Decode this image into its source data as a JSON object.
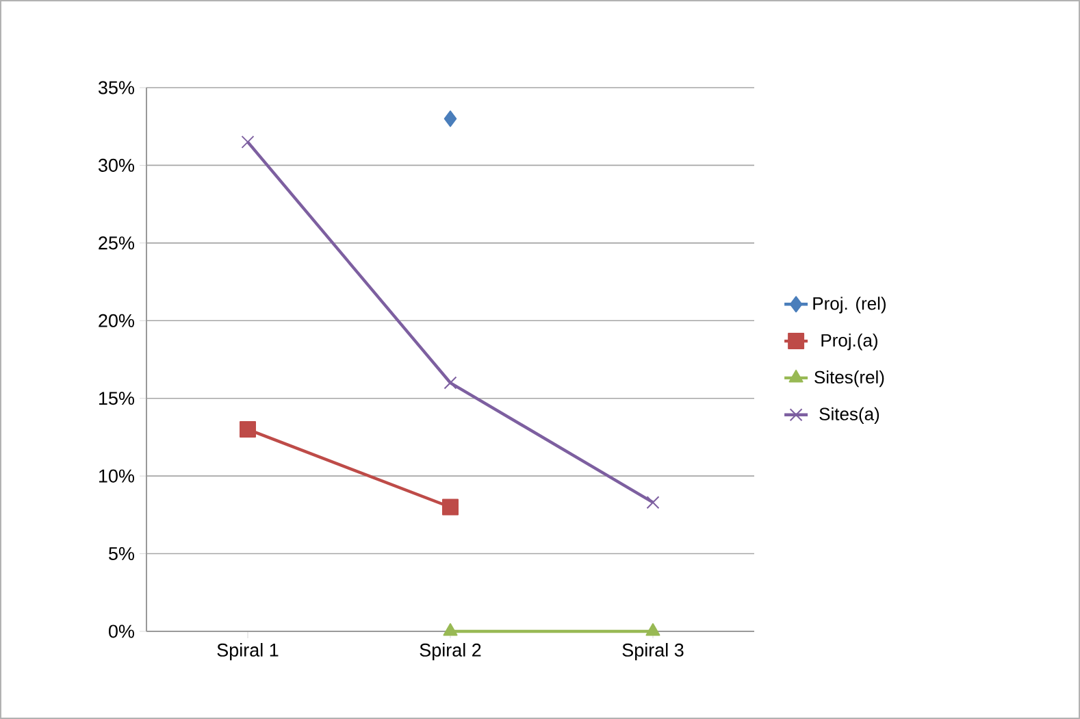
{
  "chart_data": {
    "type": "line",
    "categories": [
      "Spiral 1",
      "Spiral 2",
      "Spiral 3"
    ],
    "series": [
      {
        "name": "Proj. (rel)",
        "color": "#4a7ebb",
        "marker": "diamond",
        "values": [
          null,
          33,
          null
        ]
      },
      {
        "name": "Proj.(a)",
        "color": "#be4b48",
        "marker": "square",
        "values": [
          13,
          8,
          null
        ]
      },
      {
        "name": "Sites(rel)",
        "color": "#98b954",
        "marker": "triangle",
        "values": [
          null,
          0,
          0
        ]
      },
      {
        "name": "Sites(a)",
        "color": "#7d5fa0",
        "marker": "cross",
        "values": [
          31.5,
          16,
          8.3
        ]
      }
    ],
    "ylim": [
      0,
      35
    ],
    "yticks": [
      {
        "value": 0,
        "label": "0%"
      },
      {
        "value": 5,
        "label": "5%"
      },
      {
        "value": 10,
        "label": "10%"
      },
      {
        "value": 15,
        "label": "15%"
      },
      {
        "value": 20,
        "label": "20%"
      },
      {
        "value": 25,
        "label": "25%"
      },
      {
        "value": 30,
        "label": "30%"
      },
      {
        "value": 35,
        "label": "35%"
      }
    ],
    "grid": "y",
    "legend": "right"
  }
}
